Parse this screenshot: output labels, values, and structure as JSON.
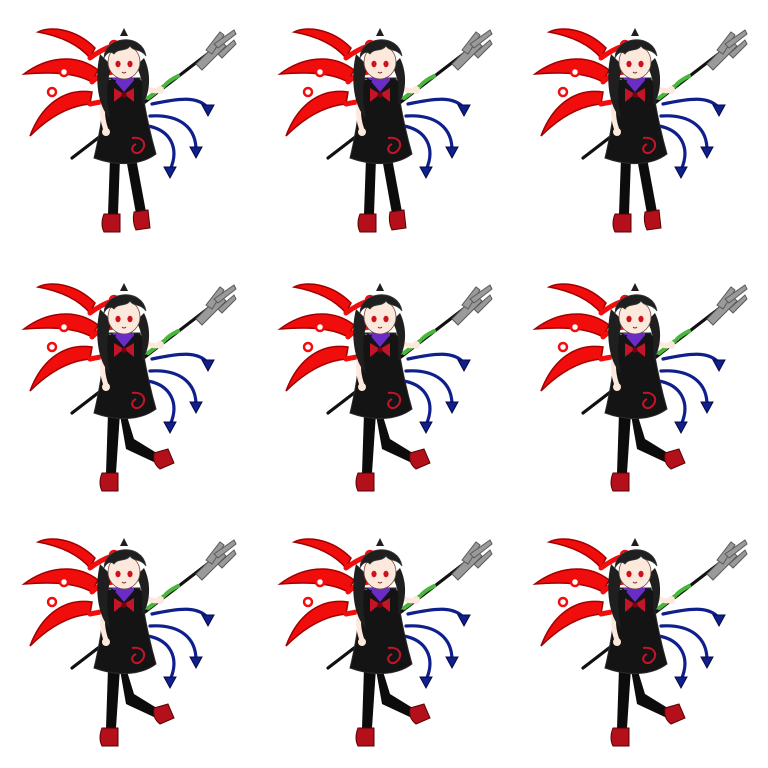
{
  "sheet": {
    "background": "#ffffff",
    "rows": 3,
    "cols": 3
  },
  "character": {
    "hair": "#1f1f1f",
    "hair_shade": "#3a3a3a",
    "skin": "#fde9dc",
    "eyes": "#d0101a",
    "dress": "#141414",
    "dress_trim": "#2b2b2b",
    "bow": "#c4142a",
    "collar_accent": "#6a2cc7",
    "stockings": "#0c0c0c",
    "shoes": "#b3101b",
    "red_wing": "#f20d0d",
    "red_wing_dark": "#a00000",
    "blue_wing": "#0f1f8c",
    "blue_wing_dark": "#050a45",
    "trident_metal": "#9a9a9a",
    "trident_shade": "#5a5a5a",
    "trident_shaft": "#111111",
    "shaft_wrap": "#49b83a"
  },
  "frames": [
    {
      "id": "r1c1",
      "pose": "stand"
    },
    {
      "id": "r1c2",
      "pose": "stand"
    },
    {
      "id": "r1c3",
      "pose": "stand"
    },
    {
      "id": "r2c1",
      "pose": "kick-back"
    },
    {
      "id": "r2c2",
      "pose": "kick-back"
    },
    {
      "id": "r2c3",
      "pose": "kick-back"
    },
    {
      "id": "r3c1",
      "pose": "kick-back"
    },
    {
      "id": "r3c2",
      "pose": "kick-back"
    },
    {
      "id": "r3c3",
      "pose": "kick-back"
    }
  ]
}
